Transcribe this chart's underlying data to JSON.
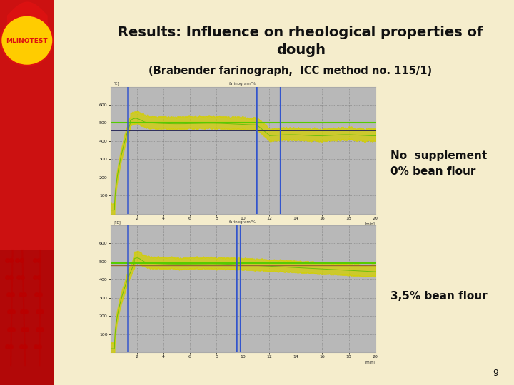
{
  "title_line1": "Results: Influence on rheological properties of",
  "title_line2": "dough",
  "subtitle": "(Brabender farinograph,  ICC method no. 115/1)",
  "label1": "No  supplement\n0% bean flour",
  "label2": "3,5% bean flour",
  "page_num": "9",
  "bg_color": "#f5edcc",
  "left_bar_color_top": "#cc1111",
  "left_bar_color_bot": "#990000",
  "title_color": "#111111",
  "chart_bg": "#b8b8b8",
  "chart_border": "#999999",
  "grid_color": "#777777",
  "line_yellow": "#cccc00",
  "line_green_bright": "#55cc00",
  "line_blue_h": "#222255",
  "vline_blue": "#3355cc",
  "logo_red": "#dd1111",
  "logo_yellow": "#ffcc00",
  "logo_oval_bg": "#ffcc00"
}
